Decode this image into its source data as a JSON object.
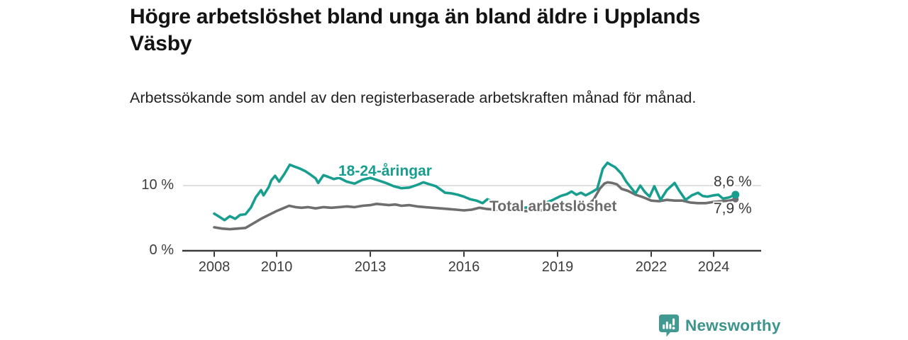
{
  "header": {
    "title": "Högre arbetslöshet bland unga än bland äldre i Upplands Väsby",
    "subtitle": "Arbetssökande som andel av den registerbaserade arbetskraften månad för månad."
  },
  "footer": {
    "brand": "Newsworthy",
    "logo_icon": "bar-chart-exclamation-badge"
  },
  "colors": {
    "youth_line": "#189e8f",
    "total_line": "#6e6e6e",
    "gridline": "#d5d5d5",
    "axis": "#3a3a3a",
    "tick_label": "#3d3d3d",
    "value_label": "#3a3a3a",
    "title_text": "#131313",
    "brand_teal": "#3c948d"
  },
  "chart_data": {
    "type": "line",
    "title": "Högre arbetslöshet bland unga än bland äldre i Upplands Väsby",
    "subtitle": "Arbetssökande som andel av den registerbaserade arbetskraften månad för månad.",
    "xlim": [
      2007,
      2025.5
    ],
    "ylim": [
      0,
      15
    ],
    "x_ticks": [
      2008,
      2010,
      2013,
      2016,
      2019,
      2022,
      2024
    ],
    "y_ticks": [
      {
        "value": 10,
        "label": "10 %"
      },
      {
        "value": 0,
        "label": "0 %"
      }
    ],
    "gridlines": [
      10
    ],
    "legend_position": "inline-labels",
    "unit": "%",
    "series": [
      {
        "name": "18-24-åringar",
        "color": "#189e8f",
        "end_label": "8,6 %",
        "end_value": 8.6,
        "points": [
          [
            2008,
            5.7
          ],
          [
            2008.17,
            5.2
          ],
          [
            2008.33,
            4.7
          ],
          [
            2008.5,
            5.3
          ],
          [
            2008.67,
            4.9
          ],
          [
            2008.83,
            5.5
          ],
          [
            2009,
            5.6
          ],
          [
            2009.17,
            6.6
          ],
          [
            2009.33,
            8.2
          ],
          [
            2009.5,
            9.3
          ],
          [
            2009.58,
            8.5
          ],
          [
            2009.75,
            9.8
          ],
          [
            2009.83,
            10.8
          ],
          [
            2009.95,
            11.5
          ],
          [
            2010.08,
            10.6
          ],
          [
            2010.25,
            11.8
          ],
          [
            2010.42,
            13.2
          ],
          [
            2010.58,
            12.9
          ],
          [
            2010.75,
            12.6
          ],
          [
            2010.92,
            12.2
          ],
          [
            2011.08,
            11.7
          ],
          [
            2011.25,
            11.1
          ],
          [
            2011.33,
            10.4
          ],
          [
            2011.5,
            11.6
          ],
          [
            2011.67,
            11.3
          ],
          [
            2011.83,
            11
          ],
          [
            2012,
            11.2
          ],
          [
            2012.25,
            10.6
          ],
          [
            2012.5,
            10.3
          ],
          [
            2012.75,
            10.9
          ],
          [
            2013,
            11.2
          ],
          [
            2013.25,
            10.8
          ],
          [
            2013.5,
            10.4
          ],
          [
            2013.75,
            9.9
          ],
          [
            2014,
            9.6
          ],
          [
            2014.25,
            9.7
          ],
          [
            2014.5,
            10.1
          ],
          [
            2014.7,
            10.5
          ],
          [
            2014.9,
            10.2
          ],
          [
            2015.1,
            9.9
          ],
          [
            2015.4,
            8.9
          ],
          [
            2015.6,
            8.8
          ],
          [
            2015.8,
            8.6
          ],
          [
            2016,
            8.3
          ],
          [
            2016.2,
            7.9
          ],
          [
            2016.4,
            7.7
          ],
          [
            2016.6,
            7.3
          ],
          [
            2016.75,
            7.9
          ],
          [
            2016.9,
            7.6
          ],
          [
            2017.05,
            7.5
          ],
          [
            2017.3,
            7.1
          ],
          [
            2017.6,
            6.8
          ],
          [
            2017.9,
            6.6
          ],
          [
            2018.2,
            6.7
          ],
          [
            2018.5,
            7.1
          ],
          [
            2018.8,
            7.7
          ],
          [
            2019.1,
            8.4
          ],
          [
            2019.3,
            8.7
          ],
          [
            2019.45,
            9.1
          ],
          [
            2019.6,
            8.6
          ],
          [
            2019.75,
            8.9
          ],
          [
            2019.9,
            8.5
          ],
          [
            2020.1,
            9
          ],
          [
            2020.27,
            9.5
          ],
          [
            2020.45,
            12.6
          ],
          [
            2020.6,
            13.5
          ],
          [
            2020.7,
            13.2
          ],
          [
            2020.85,
            12.8
          ],
          [
            2021.05,
            11.8
          ],
          [
            2021.2,
            10.6
          ],
          [
            2021.35,
            9.7
          ],
          [
            2021.5,
            8.8
          ],
          [
            2021.65,
            10
          ],
          [
            2021.8,
            9
          ],
          [
            2021.95,
            8.3
          ],
          [
            2022.1,
            9.9
          ],
          [
            2022.3,
            7.8
          ],
          [
            2022.5,
            9.3
          ],
          [
            2022.75,
            10.4
          ],
          [
            2022.9,
            9.2
          ],
          [
            2023.1,
            7.8
          ],
          [
            2023.3,
            8.5
          ],
          [
            2023.5,
            8.9
          ],
          [
            2023.65,
            8.4
          ],
          [
            2023.8,
            8.3
          ],
          [
            2024,
            8.5
          ],
          [
            2024.15,
            8.6
          ],
          [
            2024.3,
            8
          ],
          [
            2024.5,
            8.2
          ],
          [
            2024.7,
            8.6
          ]
        ]
      },
      {
        "name": "Total arbetslöshet",
        "color": "#6e6e6e",
        "end_label": "7,9 %",
        "end_value": 7.9,
        "points": [
          [
            2008,
            3.6
          ],
          [
            2008.25,
            3.4
          ],
          [
            2008.5,
            3.3
          ],
          [
            2008.75,
            3.4
          ],
          [
            2009,
            3.5
          ],
          [
            2009.25,
            4.2
          ],
          [
            2009.5,
            4.9
          ],
          [
            2009.75,
            5.5
          ],
          [
            2010,
            6.1
          ],
          [
            2010.2,
            6.5
          ],
          [
            2010.4,
            6.9
          ],
          [
            2010.6,
            6.7
          ],
          [
            2010.8,
            6.6
          ],
          [
            2011,
            6.7
          ],
          [
            2011.25,
            6.5
          ],
          [
            2011.5,
            6.7
          ],
          [
            2011.75,
            6.6
          ],
          [
            2012,
            6.7
          ],
          [
            2012.25,
            6.8
          ],
          [
            2012.5,
            6.7
          ],
          [
            2012.75,
            6.9
          ],
          [
            2013,
            7
          ],
          [
            2013.2,
            7.2
          ],
          [
            2013.4,
            7.1
          ],
          [
            2013.6,
            7
          ],
          [
            2013.8,
            7.1
          ],
          [
            2014,
            6.9
          ],
          [
            2014.25,
            7
          ],
          [
            2014.5,
            6.8
          ],
          [
            2014.75,
            6.7
          ],
          [
            2015,
            6.6
          ],
          [
            2015.25,
            6.5
          ],
          [
            2015.5,
            6.4
          ],
          [
            2015.75,
            6.3
          ],
          [
            2016,
            6.2
          ],
          [
            2016.25,
            6.3
          ],
          [
            2016.5,
            6.6
          ],
          [
            2016.75,
            6.4
          ],
          [
            2017,
            6.3
          ],
          [
            2017.25,
            6.2
          ],
          [
            2017.5,
            6.2
          ],
          [
            2017.75,
            6.1
          ],
          [
            2018,
            6.1
          ],
          [
            2018.25,
            6.2
          ],
          [
            2018.5,
            6.2
          ],
          [
            2018.75,
            6.3
          ],
          [
            2019,
            6.4
          ],
          [
            2019.25,
            6.5
          ],
          [
            2019.5,
            6.6
          ],
          [
            2019.75,
            6.8
          ],
          [
            2019.95,
            7
          ],
          [
            2020.15,
            7.8
          ],
          [
            2020.35,
            9.5
          ],
          [
            2020.5,
            10.3
          ],
          [
            2020.6,
            10.5
          ],
          [
            2020.75,
            10.4
          ],
          [
            2020.9,
            10.2
          ],
          [
            2021.05,
            9.5
          ],
          [
            2021.25,
            9.2
          ],
          [
            2021.5,
            8.6
          ],
          [
            2021.75,
            8.2
          ],
          [
            2022,
            7.7
          ],
          [
            2022.25,
            7.6
          ],
          [
            2022.5,
            7.8
          ],
          [
            2022.75,
            7.7
          ],
          [
            2023,
            7.7
          ],
          [
            2023.25,
            7.4
          ],
          [
            2023.5,
            7.3
          ],
          [
            2023.75,
            7.3
          ],
          [
            2024,
            7.5
          ],
          [
            2024.25,
            7.6
          ],
          [
            2024.5,
            7.7
          ],
          [
            2024.7,
            7.9
          ]
        ]
      }
    ]
  }
}
